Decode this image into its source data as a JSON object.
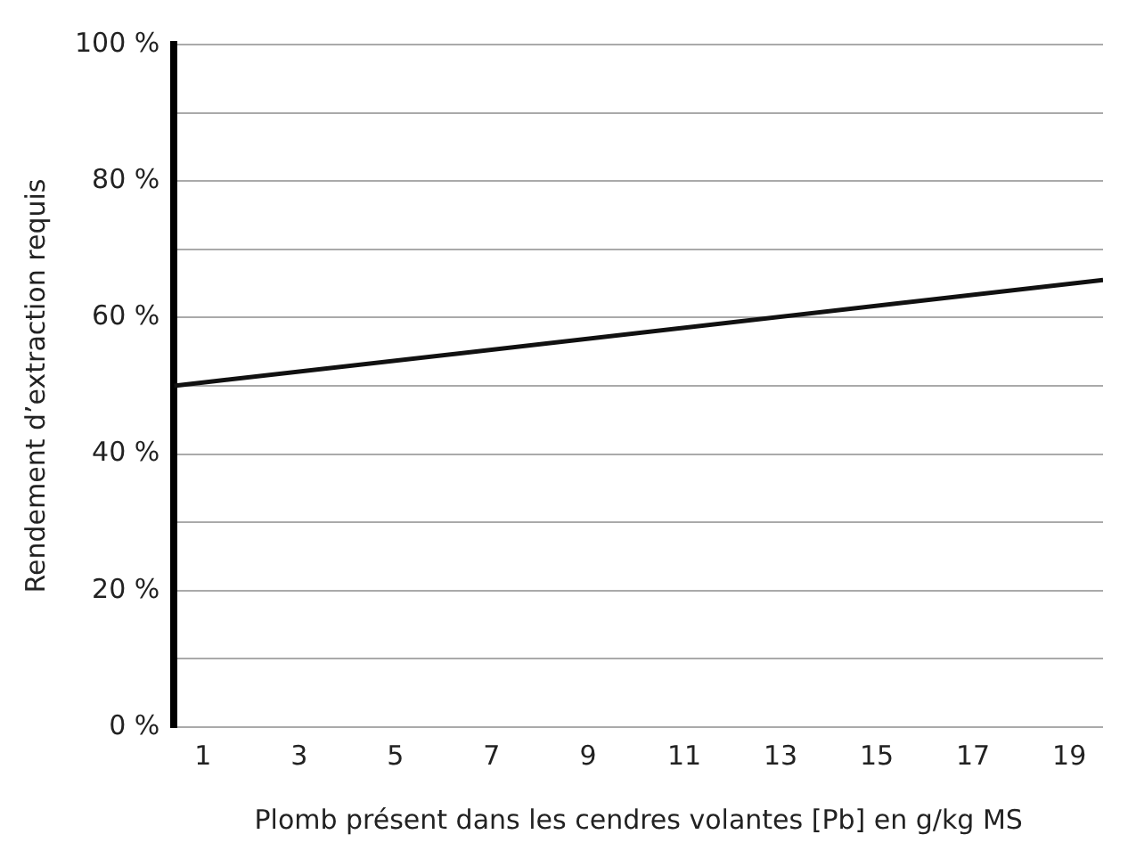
{
  "chart_data": {
    "type": "line",
    "xlabel": "Plomb présent dans les cendres volantes [Pb] en g/kg MS",
    "ylabel": "Rendement d’extraction requis",
    "x": [
      0.4,
      19.7
    ],
    "series": [
      {
        "color": "#111111",
        "values": [
          50,
          65.5
        ]
      }
    ],
    "xlim": [
      0.4,
      19.7
    ],
    "xticks": [
      1,
      3,
      5,
      7,
      9,
      11,
      13,
      15,
      17,
      19
    ],
    "ylim": [
      0,
      100
    ],
    "yticks": [
      {
        "value": 0,
        "label": "0 %"
      },
      {
        "value": 10,
        "label": null
      },
      {
        "value": 20,
        "label": "20 %"
      },
      {
        "value": 30,
        "label": null
      },
      {
        "value": 40,
        "label": "40 %"
      },
      {
        "value": 50,
        "label": null
      },
      {
        "value": 60,
        "label": "60 %"
      },
      {
        "value": 70,
        "label": null
      },
      {
        "value": 80,
        "label": "80 %"
      },
      {
        "value": 90,
        "label": null
      },
      {
        "value": 100,
        "label": "100 %"
      }
    ],
    "grid": "y",
    "marker": "none",
    "line_style": "solid"
  }
}
